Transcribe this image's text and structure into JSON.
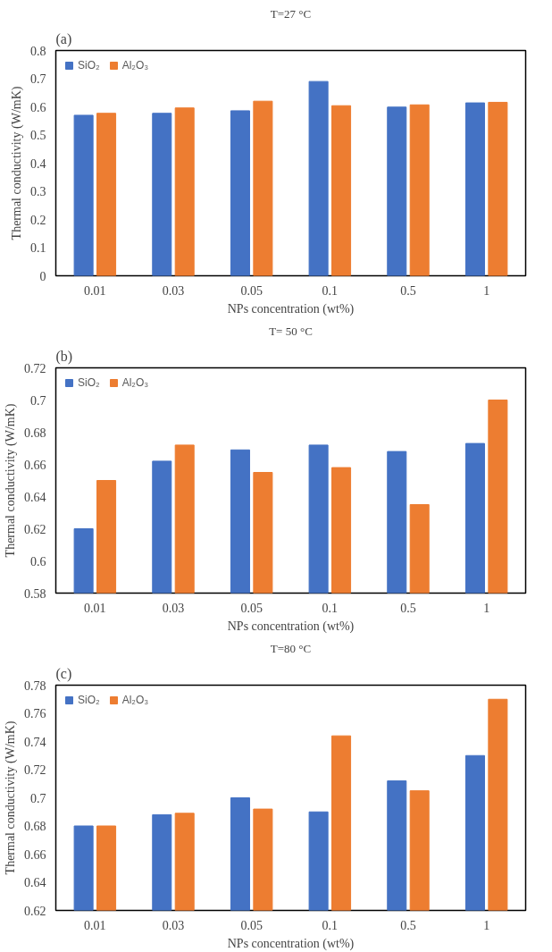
{
  "chart_data": [
    {
      "type": "bar",
      "title": "T=27 °C",
      "annotations": [
        "(a)"
      ],
      "xlabel": "NPs concentration (wt%)",
      "ylabel": "Thermal conductivity (W/mK)",
      "categories": [
        "0.01",
        "0.03",
        "0.05",
        "0.1",
        "0.5",
        "1"
      ],
      "ylim": [
        0,
        0.8
      ],
      "yticks": [
        0,
        0.1,
        0.2,
        0.3,
        0.4,
        0.5,
        0.6,
        0.7,
        0.8
      ],
      "grid": false,
      "legend": "top left",
      "series": [
        {
          "name": "SiO₂",
          "color": "#4472c4",
          "values": [
            0.57,
            0.577,
            0.586,
            0.69,
            0.599,
            0.614
          ]
        },
        {
          "name": "Al₂O₃",
          "color": "#ed7d31",
          "values": [
            0.577,
            0.596,
            0.62,
            0.604,
            0.607,
            0.616
          ]
        }
      ]
    },
    {
      "type": "bar",
      "title": "T= 50 °C",
      "annotations": [
        "(b)"
      ],
      "xlabel": "NPs concentration (wt%)",
      "ylabel": "Thermal conductivity (W/mK)",
      "categories": [
        "0.01",
        "0.03",
        "0.05",
        "0.1",
        "0.5",
        "1"
      ],
      "ylim": [
        0.58,
        0.72
      ],
      "yticks": [
        0.58,
        0.6,
        0.62,
        0.64,
        0.66,
        0.68,
        0.7,
        0.72
      ],
      "grid": false,
      "legend": "top left",
      "series": [
        {
          "name": "SiO₂",
          "color": "#4472c4",
          "values": [
            0.62,
            0.662,
            0.669,
            0.672,
            0.668,
            0.673
          ]
        },
        {
          "name": "Al₂O₃",
          "color": "#ed7d31",
          "values": [
            0.65,
            0.672,
            0.655,
            0.658,
            0.635,
            0.7
          ]
        }
      ]
    },
    {
      "type": "bar",
      "title": "T=80 °C",
      "annotations": [
        "(c)"
      ],
      "xlabel": "NPs concentration (wt%)",
      "ylabel": "Thermal conductivity (W/mK)",
      "categories": [
        "0.01",
        "0.03",
        "0.05",
        "0.1",
        "0.5",
        "1"
      ],
      "ylim": [
        0.62,
        0.78
      ],
      "yticks": [
        0.62,
        0.64,
        0.66,
        0.68,
        0.7,
        0.72,
        0.74,
        0.76,
        0.78
      ],
      "grid": false,
      "legend": "top left",
      "series": [
        {
          "name": "SiO₂",
          "color": "#4472c4",
          "values": [
            0.68,
            0.688,
            0.7,
            0.69,
            0.712,
            0.73
          ]
        },
        {
          "name": "Al₂O₃",
          "color": "#ed7d31",
          "values": [
            0.68,
            0.689,
            0.692,
            0.744,
            0.705,
            0.77
          ]
        }
      ]
    }
  ]
}
